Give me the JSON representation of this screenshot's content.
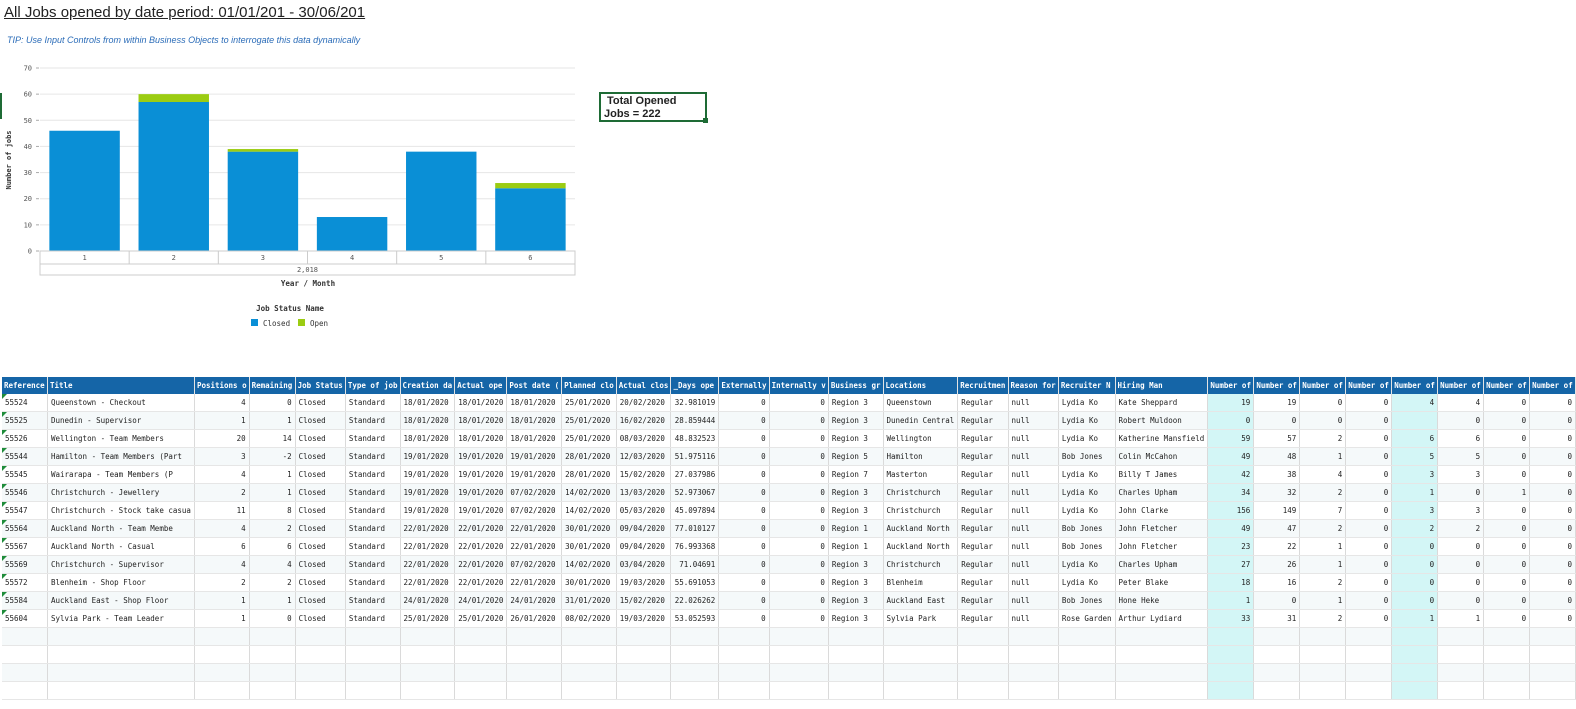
{
  "report": {
    "title": "All Jobs opened by date period: 01/01/201 - 30/06/201",
    "tip": "TIP: Use Input Controls from within Business Objects to interrogate this data dynamically",
    "total_box": {
      "line1": "Total Opened",
      "line2": "Jobs = 222"
    }
  },
  "colors": {
    "closed": "#0a8fd6",
    "open": "#9bcc12",
    "header_bg": "#1565a7",
    "highlight_col": "#d3f6f6",
    "frame": "#1e6b35"
  },
  "chart_data": {
    "type": "bar",
    "stacked": true,
    "categories": [
      "1",
      "2",
      "3",
      "4",
      "5",
      "6"
    ],
    "group_label": "2,018",
    "series": [
      {
        "name": "Closed",
        "values": [
          46,
          57,
          38,
          13,
          38,
          24
        ]
      },
      {
        "name": "Open",
        "values": [
          0,
          3,
          1,
          0,
          0,
          2
        ]
      }
    ],
    "ylabel": "Number of jobs",
    "xlabel": "Year / Month",
    "ylim": [
      0,
      70
    ],
    "yticks": [
      0,
      10,
      20,
      30,
      40,
      50,
      60,
      70
    ],
    "legend_title": "Job Status Name",
    "legend_position": "bottom",
    "grid": true
  },
  "table": {
    "headers": [
      "Reference",
      "Title",
      "Positions o",
      "Remaining",
      "Job Status",
      "Type of job",
      "Creation da",
      "Actual ope",
      "Post date (",
      "Planned clo",
      "Actual clos",
      "_Days ope",
      "Externally",
      "Internally v",
      "Business gr",
      "Locations",
      "Recruitmen",
      "Reason for",
      "Recruiter N",
      "Hiring Man",
      "Number of",
      "Number of",
      "Number of",
      "Number of",
      "Number of",
      "Number of",
      "Number of",
      "Number of"
    ],
    "rows": [
      [
        "55524",
        "Queenstown - Checkout",
        "4",
        "0",
        "Closed",
        "Standard",
        "18/01/2020",
        "18/01/2020",
        "18/01/2020",
        "25/01/2020",
        "20/02/2020",
        "32.981019",
        "0",
        "0",
        "Region 3",
        "Queenstown",
        "Regular",
        "null",
        "Lydia Ko",
        "Kate Sheppard",
        "19",
        "19",
        "0",
        "0",
        "4",
        "4",
        "0",
        "0"
      ],
      [
        "55525",
        "Dunedin - Supervisor",
        "1",
        "1",
        "Closed",
        "Standard",
        "18/01/2020",
        "18/01/2020",
        "18/01/2020",
        "25/01/2020",
        "16/02/2020",
        "28.859444",
        "0",
        "0",
        "Region 3",
        "Dunedin Central",
        "Regular",
        "null",
        "Lydia Ko",
        "Robert Muldoon",
        "0",
        "0",
        "0",
        "0",
        "",
        "0",
        "0",
        "0"
      ],
      [
        "55526",
        "Wellington - Team Members",
        "20",
        "14",
        "Closed",
        "Standard",
        "18/01/2020",
        "18/01/2020",
        "18/01/2020",
        "25/01/2020",
        "08/03/2020",
        "48.832523",
        "0",
        "0",
        "Region 3",
        "Wellington",
        "Regular",
        "null",
        "Lydia Ko",
        "Katherine Mansfield",
        "59",
        "57",
        "2",
        "0",
        "6",
        "6",
        "0",
        "0"
      ],
      [
        "55544",
        "Hamilton - Team Members (Part",
        "3",
        "-2",
        "Closed",
        "Standard",
        "19/01/2020",
        "19/01/2020",
        "19/01/2020",
        "28/01/2020",
        "12/03/2020",
        "51.975116",
        "0",
        "0",
        "Region 5",
        "Hamilton",
        "Regular",
        "null",
        "Bob Jones",
        "Colin McCahon",
        "49",
        "48",
        "1",
        "0",
        "5",
        "5",
        "0",
        "0"
      ],
      [
        "55545",
        "Wairarapa - Team Members (P",
        "4",
        "1",
        "Closed",
        "Standard",
        "19/01/2020",
        "19/01/2020",
        "19/01/2020",
        "28/01/2020",
        "15/02/2020",
        "27.037986",
        "0",
        "0",
        "Region 7",
        "Masterton",
        "Regular",
        "null",
        "Lydia Ko",
        "Billy T James",
        "42",
        "38",
        "4",
        "0",
        "3",
        "3",
        "0",
        "0"
      ],
      [
        "55546",
        "Christchurch - Jewellery",
        "2",
        "1",
        "Closed",
        "Standard",
        "19/01/2020",
        "19/01/2020",
        "07/02/2020",
        "14/02/2020",
        "13/03/2020",
        "52.973067",
        "0",
        "0",
        "Region 3",
        "Christchurch",
        "Regular",
        "null",
        "Lydia Ko",
        "Charles Upham",
        "34",
        "32",
        "2",
        "0",
        "1",
        "0",
        "1",
        "0"
      ],
      [
        "55547",
        "Christchurch - Stock take casua",
        "11",
        "8",
        "Closed",
        "Standard",
        "19/01/2020",
        "19/01/2020",
        "07/02/2020",
        "14/02/2020",
        "05/03/2020",
        "45.097894",
        "0",
        "0",
        "Region 3",
        "Christchurch",
        "Regular",
        "null",
        "Lydia Ko",
        "John Clarke",
        "156",
        "149",
        "7",
        "0",
        "3",
        "3",
        "0",
        "0"
      ],
      [
        "55564",
        "Auckland North - Team Membe",
        "4",
        "2",
        "Closed",
        "Standard",
        "22/01/2020",
        "22/01/2020",
        "22/01/2020",
        "30/01/2020",
        "09/04/2020",
        "77.010127",
        "0",
        "0",
        "Region 1",
        "Auckland North",
        "Regular",
        "null",
        "Bob Jones",
        "John Fletcher",
        "49",
        "47",
        "2",
        "0",
        "2",
        "2",
        "0",
        "0"
      ],
      [
        "55567",
        "Auckland North - Casual",
        "6",
        "6",
        "Closed",
        "Standard",
        "22/01/2020",
        "22/01/2020",
        "22/01/2020",
        "30/01/2020",
        "09/04/2020",
        "76.993368",
        "0",
        "0",
        "Region 1",
        "Auckland North",
        "Regular",
        "null",
        "Bob Jones",
        "John Fletcher",
        "23",
        "22",
        "1",
        "0",
        "0",
        "0",
        "0",
        "0"
      ],
      [
        "55569",
        "Christchurch - Supervisor",
        "4",
        "4",
        "Closed",
        "Standard",
        "22/01/2020",
        "22/01/2020",
        "07/02/2020",
        "14/02/2020",
        "03/04/2020",
        "71.04691",
        "0",
        "0",
        "Region 3",
        "Christchurch",
        "Regular",
        "null",
        "Lydia Ko",
        "Charles Upham",
        "27",
        "26",
        "1",
        "0",
        "0",
        "0",
        "0",
        "0"
      ],
      [
        "55572",
        "Blenheim - Shop Floor",
        "2",
        "2",
        "Closed",
        "Standard",
        "22/01/2020",
        "22/01/2020",
        "22/01/2020",
        "30/01/2020",
        "19/03/2020",
        "55.691053",
        "0",
        "0",
        "Region 3",
        "Blenheim",
        "Regular",
        "null",
        "Lydia Ko",
        "Peter Blake",
        "18",
        "16",
        "2",
        "0",
        "0",
        "0",
        "0",
        "0"
      ],
      [
        "55584",
        "Auckland East - Shop Floor",
        "1",
        "1",
        "Closed",
        "Standard",
        "24/01/2020",
        "24/01/2020",
        "24/01/2020",
        "31/01/2020",
        "15/02/2020",
        "22.026262",
        "0",
        "0",
        "Region 3",
        "Auckland East",
        "Regular",
        "null",
        "Bob Jones",
        "Hone Heke",
        "1",
        "0",
        "1",
        "0",
        "0",
        "0",
        "0",
        "0"
      ],
      [
        "55604",
        "Sylvia Park - Team Leader",
        "1",
        "0",
        "Closed",
        "Standard",
        "25/01/2020",
        "25/01/2020",
        "26/01/2020",
        "08/02/2020",
        "19/03/2020",
        "53.052593",
        "0",
        "0",
        "Region 3",
        "Sylvia Park",
        "Regular",
        "null",
        "Rose Garden",
        "Arthur Lydiard",
        "33",
        "31",
        "2",
        "0",
        "1",
        "1",
        "0",
        "0"
      ]
    ]
  }
}
